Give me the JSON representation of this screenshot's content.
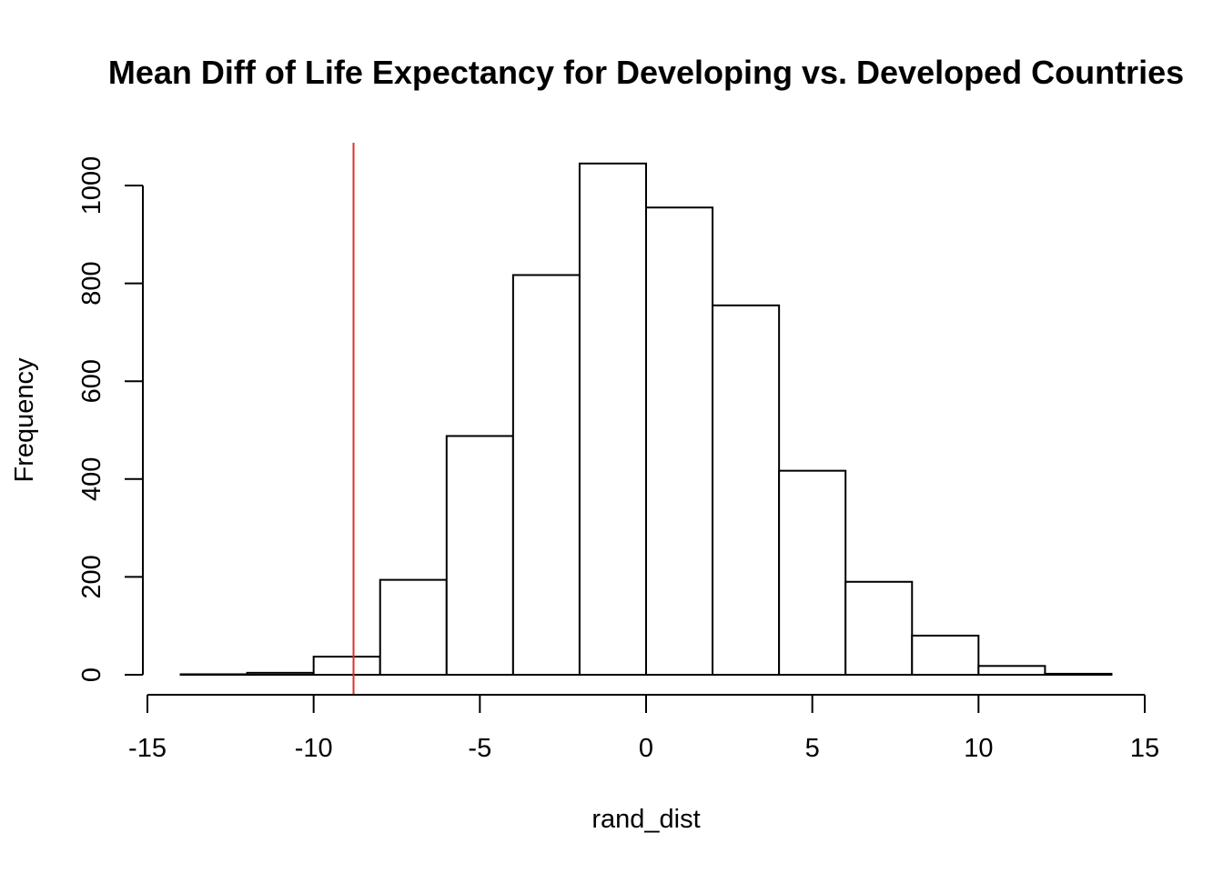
{
  "chart_data": {
    "type": "bar",
    "title": "Mean Diff of Life Expectancy for Developing vs. Developed Countries",
    "xlabel": "rand_dist",
    "ylabel": "Frequency",
    "xlim": [
      -15,
      15
    ],
    "ylim": [
      0,
      1090
    ],
    "x_ticks": [
      -15,
      -10,
      -5,
      0,
      5,
      10,
      15
    ],
    "y_ticks": [
      0,
      200,
      400,
      600,
      800,
      1000
    ],
    "bins": [
      {
        "start": -14,
        "end": -12,
        "count": 1
      },
      {
        "start": -12,
        "end": -10,
        "count": 4
      },
      {
        "start": -10,
        "end": -8,
        "count": 37
      },
      {
        "start": -8,
        "end": -6,
        "count": 194
      },
      {
        "start": -6,
        "end": -4,
        "count": 488
      },
      {
        "start": -4,
        "end": -2,
        "count": 817
      },
      {
        "start": -2,
        "end": 0,
        "count": 1045
      },
      {
        "start": 0,
        "end": 2,
        "count": 955
      },
      {
        "start": 2,
        "end": 4,
        "count": 755
      },
      {
        "start": 4,
        "end": 6,
        "count": 417
      },
      {
        "start": 6,
        "end": 8,
        "count": 190
      },
      {
        "start": 8,
        "end": 10,
        "count": 80
      },
      {
        "start": 10,
        "end": 12,
        "count": 18
      },
      {
        "start": 12,
        "end": 14,
        "count": 2
      }
    ],
    "reference_line": {
      "x": -8.8,
      "color": "#e0302a"
    },
    "grid": false,
    "legend": "none",
    "colors": {
      "bar_fill": "#ffffff",
      "bar_stroke": "#000000"
    }
  }
}
